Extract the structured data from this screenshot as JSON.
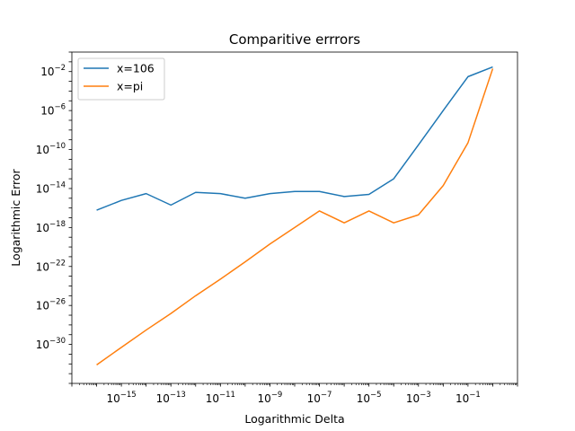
{
  "chart_data": {
    "type": "line",
    "title": "Comparitive errrors",
    "xlabel": "Logarithmic Delta",
    "ylabel": "Logarithmic Error",
    "xscale": "log",
    "yscale": "log",
    "xlim": [
      1e-17,
      10
    ],
    "ylim": [
      1e-34,
      1
    ],
    "x_ticks": [
      1e-15,
      1e-13,
      1e-11,
      1e-09,
      1e-07,
      1e-05,
      0.001,
      0.1
    ],
    "y_ticks": [
      1e-30,
      1e-26,
      1e-22,
      1e-18,
      1e-14,
      1e-10,
      1e-06,
      0.01
    ],
    "x_tick_labels": [
      {
        "base": "10",
        "exp": "−15"
      },
      {
        "base": "10",
        "exp": "−13"
      },
      {
        "base": "10",
        "exp": "−11"
      },
      {
        "base": "10",
        "exp": "−9"
      },
      {
        "base": "10",
        "exp": "−7"
      },
      {
        "base": "10",
        "exp": "−5"
      },
      {
        "base": "10",
        "exp": "−3"
      },
      {
        "base": "10",
        "exp": "−1"
      }
    ],
    "y_tick_labels": [
      {
        "base": "10",
        "exp": "−30"
      },
      {
        "base": "10",
        "exp": "−26"
      },
      {
        "base": "10",
        "exp": "−22"
      },
      {
        "base": "10",
        "exp": "−18"
      },
      {
        "base": "10",
        "exp": "−14"
      },
      {
        "base": "10",
        "exp": "−10"
      },
      {
        "base": "10",
        "exp": "−6"
      },
      {
        "base": "10",
        "exp": "−2"
      }
    ],
    "grid": false,
    "legend_position": "upper-left",
    "x": [
      1e-16,
      1e-15,
      1e-14,
      1e-13,
      1e-12,
      1e-11,
      1e-10,
      1e-09,
      1e-08,
      1e-07,
      1e-06,
      1e-05,
      0.0001,
      0.001,
      0.01,
      0.1,
      1
    ],
    "series": [
      {
        "name": "x=106",
        "color": "#1f77b4",
        "values": [
          6e-17,
          6e-16,
          3e-15,
          2e-16,
          4e-15,
          3e-15,
          1e-15,
          3e-15,
          5e-15,
          5e-15,
          1.5e-15,
          2.5e-15,
          1e-13,
          3e-10,
          1e-06,
          0.003,
          0.03
        ]
      },
      {
        "name": "x=pi",
        "color": "#ff7f0e",
        "values": [
          8e-33,
          5e-31,
          3e-29,
          1.5e-27,
          1e-25,
          5e-24,
          3e-22,
          2e-20,
          1e-18,
          5e-17,
          3e-18,
          5e-17,
          3e-18,
          2e-17,
          2e-14,
          5e-10,
          0.02
        ]
      }
    ]
  }
}
